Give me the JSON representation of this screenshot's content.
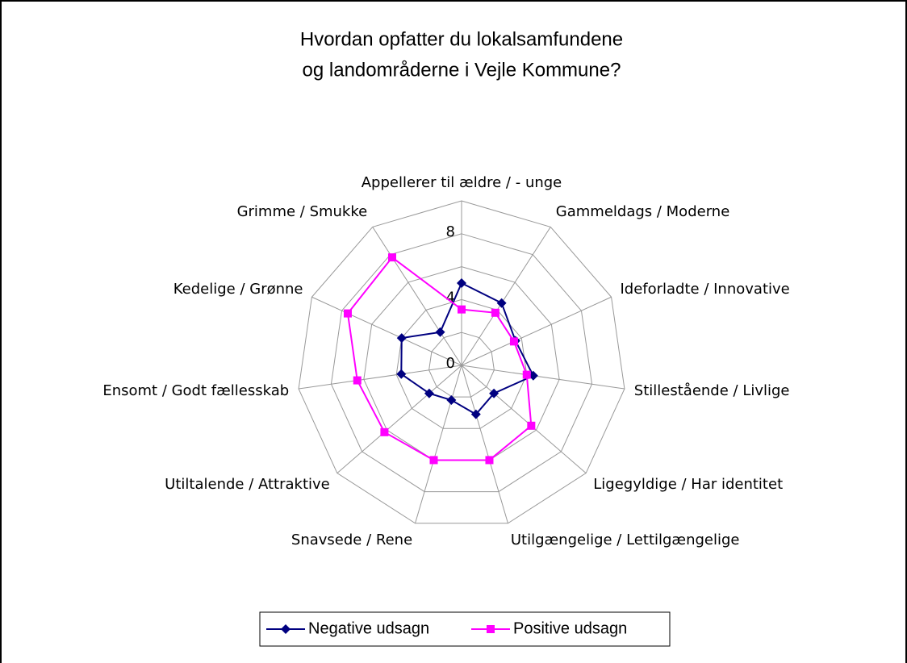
{
  "chart_data": {
    "type": "radar",
    "title": [
      "Hvordan opfatter du lokalsamfundene",
      "og landområderne i Vejle Kommune?"
    ],
    "categories": [
      "Appellerer til ældre / - unge",
      "Gammeldags / Moderne",
      "Ideforladte / Innovative",
      "Stillestående / Livlige",
      "Ligegyldige / Har identitet",
      "Utilgængelige / Lettilgængelige",
      "Snavsede / Rene",
      "Utiltalende / Attraktive",
      "Ensomt / Godt fællesskab",
      "Kedelige / Grønne",
      "Grimme / Smukke"
    ],
    "series": [
      {
        "name": "Negative udsagn",
        "color": "#000080",
        "marker": "diamond",
        "values": [
          5.0,
          4.5,
          3.6,
          4.4,
          2.6,
          3.1,
          2.2,
          2.6,
          3.7,
          4.0,
          2.4
        ]
      },
      {
        "name": "Positive udsagn",
        "color": "#ff00ff",
        "marker": "square",
        "values": [
          3.4,
          3.8,
          3.5,
          4.0,
          5.6,
          6.0,
          6.0,
          6.2,
          6.4,
          7.6,
          7.8
        ]
      }
    ],
    "ylim": [
      0,
      10
    ],
    "yticks": [
      0,
      4,
      8
    ],
    "grid_rings": [
      2,
      4,
      6,
      8,
      10
    ],
    "legend": "bottom"
  }
}
